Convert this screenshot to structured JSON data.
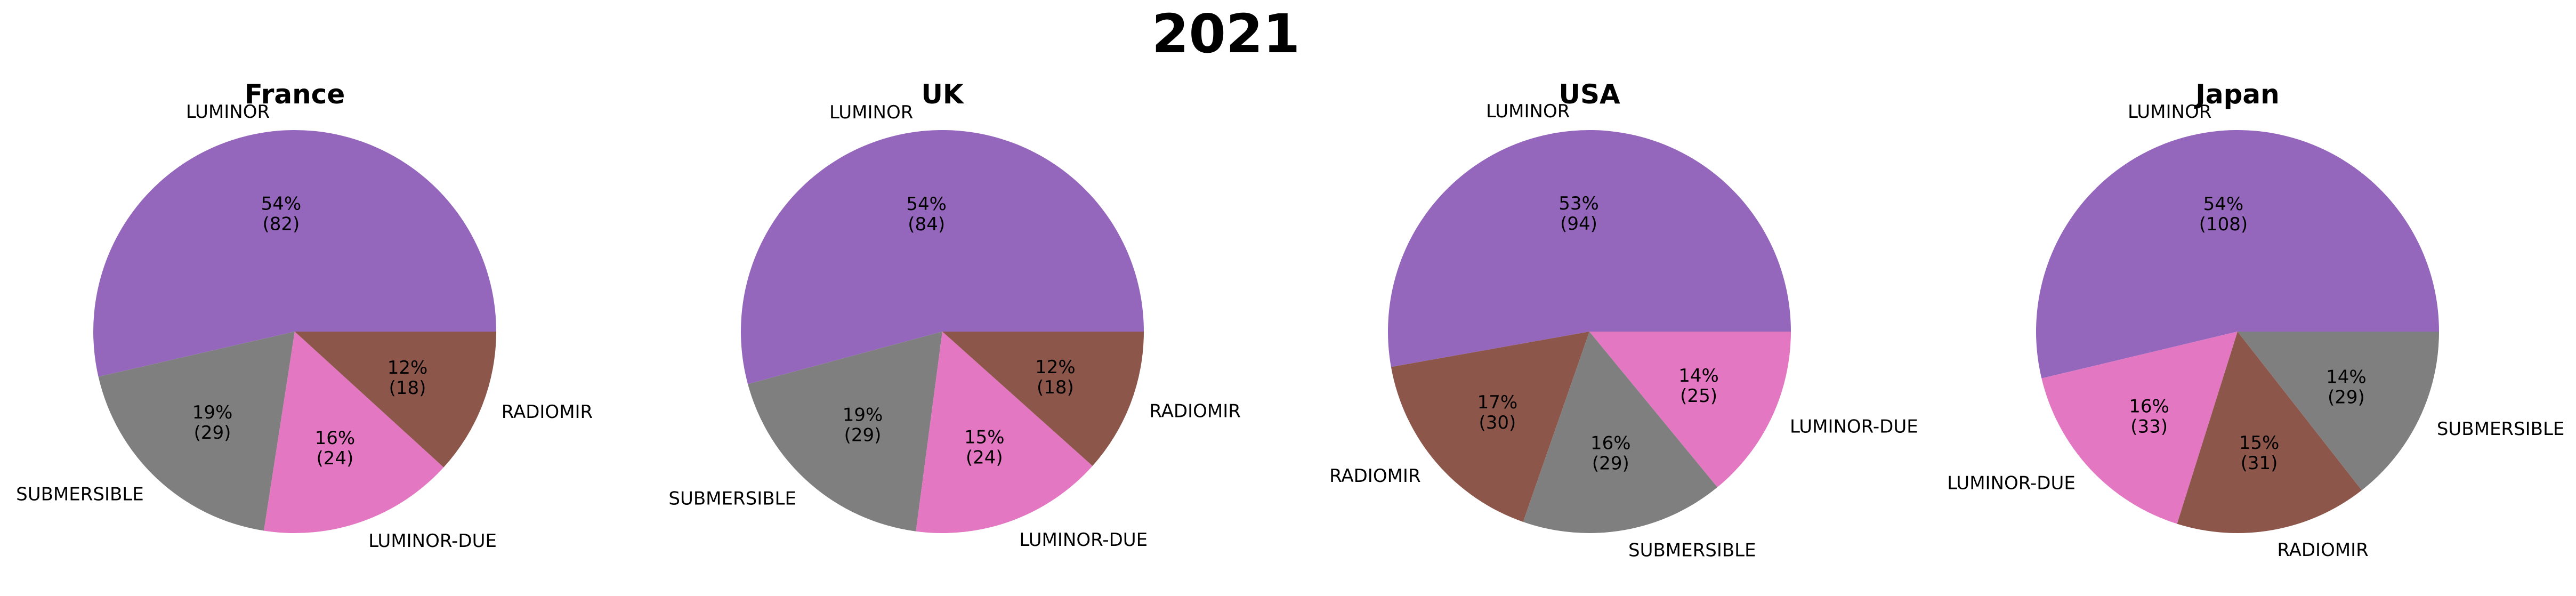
{
  "suptitle": "2021",
  "colors": {
    "LUMINOR": "#9467bd",
    "SUBMERSIBLE": "#7f7f7f",
    "LUMINOR-DUE": "#e377c2",
    "RADIOMIR": "#8c564b"
  },
  "chart_data": [
    {
      "type": "pie",
      "title": "France",
      "labels": [
        "LUMINOR",
        "SUBMERSIBLE",
        "LUMINOR-DUE",
        "RADIOMIR"
      ],
      "values": [
        82,
        29,
        24,
        18
      ],
      "percent_labels": [
        "54%",
        "19%",
        "16%",
        "12%"
      ]
    },
    {
      "type": "pie",
      "title": "UK",
      "labels": [
        "LUMINOR",
        "SUBMERSIBLE",
        "LUMINOR-DUE",
        "RADIOMIR"
      ],
      "values": [
        84,
        29,
        24,
        18
      ],
      "percent_labels": [
        "54%",
        "19%",
        "15%",
        "12%"
      ]
    },
    {
      "type": "pie",
      "title": "USA",
      "labels": [
        "LUMINOR",
        "RADIOMIR",
        "SUBMERSIBLE",
        "LUMINOR-DUE"
      ],
      "values": [
        94,
        30,
        29,
        25
      ],
      "percent_labels": [
        "53%",
        "17%",
        "16%",
        "14%"
      ]
    },
    {
      "type": "pie",
      "title": "Japan",
      "labels": [
        "LUMINOR",
        "LUMINOR-DUE",
        "RADIOMIR",
        "SUBMERSIBLE"
      ],
      "values": [
        108,
        33,
        31,
        29
      ],
      "percent_labels": [
        "54%",
        "16%",
        "15%",
        "14%"
      ]
    }
  ]
}
